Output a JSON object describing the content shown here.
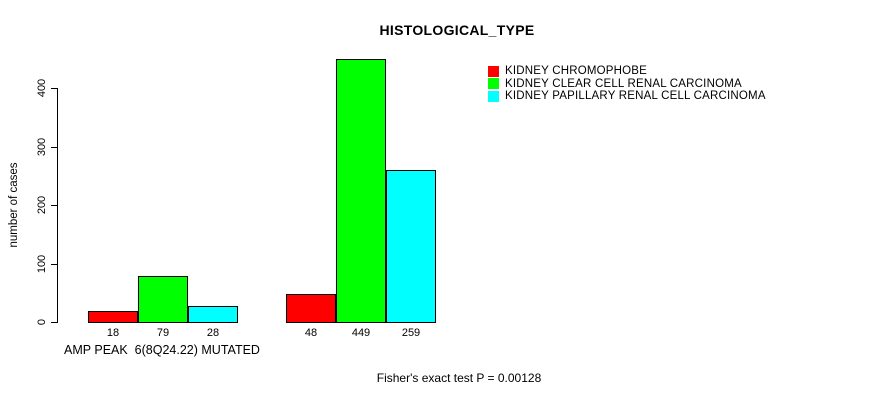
{
  "title": "HISTOLOGICAL_TYPE",
  "y_axis": {
    "label": "number of cases",
    "ticks": [
      0,
      100,
      200,
      300,
      400
    ]
  },
  "x_axis": {
    "group_label": "AMP PEAK  6(8Q24.22) MUTATED"
  },
  "annotation": "Fisher's exact test P = 0.00128",
  "legend": {
    "items": [
      {
        "label": "KIDNEY CHROMOPHOBE",
        "color": "#ff0000"
      },
      {
        "label": "KIDNEY CLEAR CELL RENAL CARCINOMA",
        "color": "#00ff00"
      },
      {
        "label": "KIDNEY PAPILLARY RENAL CELL CARCINOMA",
        "color": "#00ffff"
      }
    ]
  },
  "chart_data": {
    "type": "bar",
    "title": "HISTOLOGICAL_TYPE",
    "xlabel": "AMP PEAK  6(8Q24.22) MUTATED",
    "ylabel": "number of cases",
    "categories": [
      "AMP PEAK  6(8Q24.22) MUTATED",
      ""
    ],
    "series": [
      {
        "name": "KIDNEY CHROMOPHOBE",
        "color": "#ff0000",
        "values": [
          18,
          48
        ]
      },
      {
        "name": "KIDNEY CLEAR CELL RENAL CARCINOMA",
        "color": "#00ff00",
        "values": [
          79,
          449
        ]
      },
      {
        "name": "KIDNEY PAPILLARY RENAL CELL CARCINOMA",
        "color": "#00ffff",
        "values": [
          28,
          259
        ]
      }
    ],
    "bar_value_labels": [
      [
        18,
        79,
        28
      ],
      [
        48,
        449,
        259
      ]
    ],
    "yticks": [
      0,
      100,
      200,
      300,
      400
    ],
    "ylim": [
      0,
      450
    ],
    "grid": false,
    "legend_position": "top-right",
    "bar_border_color": "#000000",
    "annotation": "Fisher's exact test P = 0.00128"
  }
}
